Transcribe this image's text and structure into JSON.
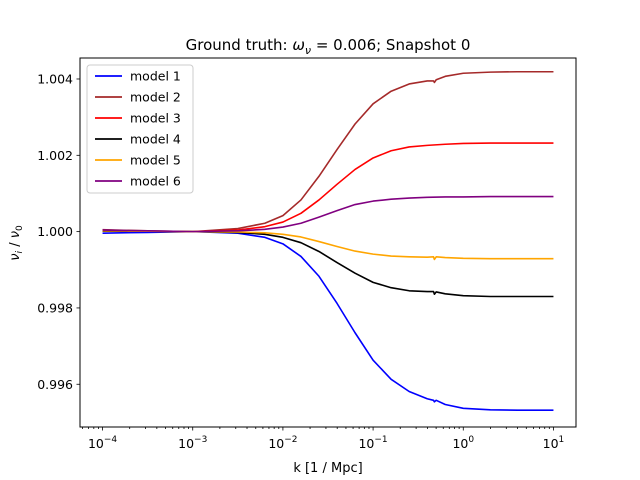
{
  "chart_data": {
    "type": "line",
    "title": "Ground truth: ω_ν = 0.006; Snapshot 0",
    "title_parts": {
      "prefix": "Ground truth: ",
      "omega": "ω",
      "nu": "ν",
      "suffix": " = 0.006; Snapshot 0"
    },
    "xlabel": "k [1 / Mpc]",
    "ylabel_parts": {
      "sym": "ν",
      "sub_i": "i",
      "sub_0": "0",
      "sep": " / "
    },
    "x_scale": "log",
    "xlim_log10": [
      -4.25,
      1.25
    ],
    "ylim": [
      0.99488,
      1.00455
    ],
    "x_ticks": [
      {
        "base": "10",
        "exp": "−4",
        "log10": -4
      },
      {
        "base": "10",
        "exp": "−3",
        "log10": -3
      },
      {
        "base": "10",
        "exp": "−2",
        "log10": -2
      },
      {
        "base": "10",
        "exp": "−1",
        "log10": -1
      },
      {
        "base": "10",
        "exp": "0",
        "log10": 0
      },
      {
        "base": "10",
        "exp": "1",
        "log10": 1
      }
    ],
    "y_ticks": [
      {
        "label": "0.996",
        "value": 0.996
      },
      {
        "label": "0.998",
        "value": 0.998
      },
      {
        "label": "1.000",
        "value": 1.0
      },
      {
        "label": "1.002",
        "value": 1.002
      },
      {
        "label": "1.004",
        "value": 1.004
      }
    ],
    "grid": false,
    "legend_position": "top-left",
    "series": [
      {
        "name": "model 1",
        "color": "#0000ff",
        "points": [
          [
            -4,
            0.99996
          ],
          [
            -3.5,
            0.99998
          ],
          [
            -3,
            1.0
          ],
          [
            -2.5,
            0.99996
          ],
          [
            -2.2,
            0.99985
          ],
          [
            -2,
            0.99968
          ],
          [
            -1.8,
            0.99935
          ],
          [
            -1.6,
            0.99883
          ],
          [
            -1.4,
            0.99812
          ],
          [
            -1.2,
            0.99735
          ],
          [
            -1,
            0.99663
          ],
          [
            -0.8,
            0.99613
          ],
          [
            -0.6,
            0.99581
          ],
          [
            -0.4,
            0.99562
          ],
          [
            -0.33,
            0.99558
          ],
          [
            -0.32,
            0.99554
          ],
          [
            -0.3,
            0.99558
          ],
          [
            -0.2,
            0.99547
          ],
          [
            0,
            0.99537
          ],
          [
            0.3,
            0.99533
          ],
          [
            0.6,
            0.99532
          ],
          [
            1,
            0.99532
          ]
        ]
      },
      {
        "name": "model 2",
        "color": "#a52a2a",
        "points": [
          [
            -4,
            1.00005
          ],
          [
            -3.5,
            1.00002
          ],
          [
            -3,
            1.0
          ],
          [
            -2.5,
            1.00008
          ],
          [
            -2.2,
            1.00022
          ],
          [
            -2,
            1.00042
          ],
          [
            -1.8,
            1.00083
          ],
          [
            -1.6,
            1.00145
          ],
          [
            -1.4,
            1.00215
          ],
          [
            -1.2,
            1.00282
          ],
          [
            -1,
            1.00335
          ],
          [
            -0.8,
            1.00368
          ],
          [
            -0.6,
            1.00387
          ],
          [
            -0.4,
            1.00395
          ],
          [
            -0.33,
            1.00395
          ],
          [
            -0.32,
            1.00391
          ],
          [
            -0.3,
            1.00398
          ],
          [
            -0.2,
            1.00407
          ],
          [
            0,
            1.00415
          ],
          [
            0.3,
            1.00418
          ],
          [
            0.6,
            1.00419
          ],
          [
            1,
            1.00419
          ]
        ]
      },
      {
        "name": "model 3",
        "color": "#ff0000",
        "points": [
          [
            -4,
            1.00003
          ],
          [
            -3.5,
            1.00001
          ],
          [
            -3,
            1.0
          ],
          [
            -2.5,
            1.00004
          ],
          [
            -2.2,
            1.00013
          ],
          [
            -2,
            1.00025
          ],
          [
            -1.8,
            1.00048
          ],
          [
            -1.6,
            1.00083
          ],
          [
            -1.4,
            1.00124
          ],
          [
            -1.2,
            1.00163
          ],
          [
            -1,
            1.00193
          ],
          [
            -0.8,
            1.00212
          ],
          [
            -0.6,
            1.00222
          ],
          [
            -0.4,
            1.00226
          ],
          [
            -0.2,
            1.00229
          ],
          [
            0,
            1.00231
          ],
          [
            0.3,
            1.00232
          ],
          [
            1,
            1.00232
          ]
        ]
      },
      {
        "name": "model 4",
        "color": "#000000",
        "points": [
          [
            -4,
            1.00001
          ],
          [
            -3.5,
            1.00001
          ],
          [
            -3,
            1.0
          ],
          [
            -2.5,
            0.99998
          ],
          [
            -2.2,
            0.99993
          ],
          [
            -2,
            0.99985
          ],
          [
            -1.8,
            0.99971
          ],
          [
            -1.6,
            0.99948
          ],
          [
            -1.4,
            0.99919
          ],
          [
            -1.2,
            0.99891
          ],
          [
            -1,
            0.99867
          ],
          [
            -0.8,
            0.99853
          ],
          [
            -0.6,
            0.99845
          ],
          [
            -0.4,
            0.99843
          ],
          [
            -0.33,
            0.99843
          ],
          [
            -0.32,
            0.99836
          ],
          [
            -0.3,
            0.99842
          ],
          [
            -0.2,
            0.99837
          ],
          [
            0,
            0.99832
          ],
          [
            0.3,
            0.9983
          ],
          [
            1,
            0.9983
          ]
        ]
      },
      {
        "name": "model 5",
        "color": "#ffa500",
        "points": [
          [
            -4,
            1.00002
          ],
          [
            -3.5,
            1.00001
          ],
          [
            -3,
            1.0
          ],
          [
            -2.5,
            0.99999
          ],
          [
            -2.2,
            0.99997
          ],
          [
            -2,
            0.99993
          ],
          [
            -1.8,
            0.99986
          ],
          [
            -1.6,
            0.99974
          ],
          [
            -1.4,
            0.99961
          ],
          [
            -1.2,
            0.99949
          ],
          [
            -1,
            0.99941
          ],
          [
            -0.8,
            0.99936
          ],
          [
            -0.6,
            0.99934
          ],
          [
            -0.4,
            0.99933
          ],
          [
            -0.33,
            0.99934
          ],
          [
            -0.32,
            0.99927
          ],
          [
            -0.3,
            0.99934
          ],
          [
            -0.2,
            0.99932
          ],
          [
            0,
            0.9993
          ],
          [
            0.3,
            0.99929
          ],
          [
            1,
            0.99929
          ]
        ]
      },
      {
        "name": "model 6",
        "color": "#800080",
        "points": [
          [
            -4,
            1.00004
          ],
          [
            -3.5,
            1.00002
          ],
          [
            -3,
            1.0
          ],
          [
            -2.5,
            1.00002
          ],
          [
            -2.2,
            1.00006
          ],
          [
            -2,
            1.00012
          ],
          [
            -1.8,
            1.00022
          ],
          [
            -1.6,
            1.00038
          ],
          [
            -1.4,
            1.00055
          ],
          [
            -1.2,
            1.00071
          ],
          [
            -1,
            1.0008
          ],
          [
            -0.8,
            1.00085
          ],
          [
            -0.6,
            1.00088
          ],
          [
            -0.4,
            1.0009
          ],
          [
            -0.2,
            1.00091
          ],
          [
            0,
            1.00091
          ],
          [
            0.3,
            1.00092
          ],
          [
            1,
            1.00092
          ]
        ]
      }
    ]
  }
}
